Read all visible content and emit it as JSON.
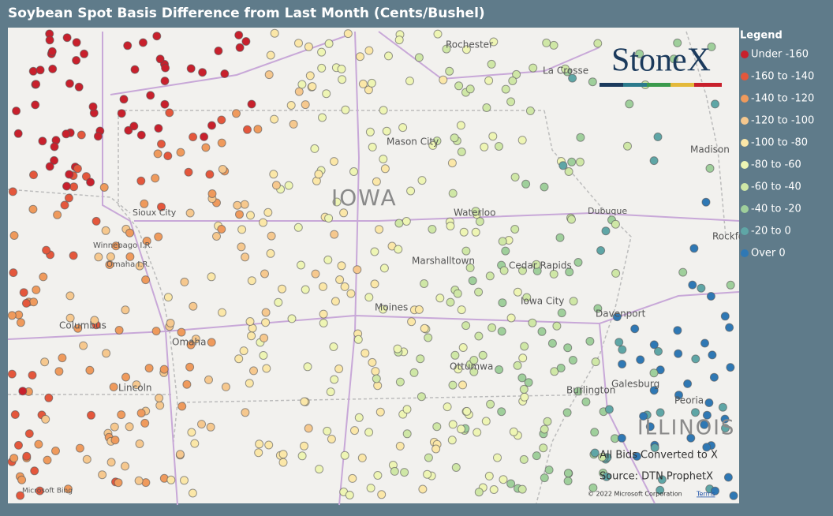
{
  "header": {
    "title": "Soybean Spot Basis Difference from Last Month (Cents/Bushel)"
  },
  "legend": {
    "title": "Legend",
    "items": [
      {
        "label": "Under -160",
        "color": "#c8202c"
      },
      {
        "label": "-160 to -140",
        "color": "#e4573c"
      },
      {
        "label": "-140 to -120",
        "color": "#ef9a5c"
      },
      {
        "label": "-120 to -100",
        "color": "#f6c88e"
      },
      {
        "label": "-100 to -80",
        "color": "#fbe7a8"
      },
      {
        "label": "-80 to -60",
        "color": "#eef5b4"
      },
      {
        "label": "-60 to -40",
        "color": "#cfe7a6"
      },
      {
        "label": "-40 to -20",
        "color": "#9fcf9b"
      },
      {
        "label": "-20 to 0",
        "color": "#5fa6a6"
      },
      {
        "label": "Over 0",
        "color": "#2f78b4"
      }
    ]
  },
  "logo": "StoneX",
  "map_labels": [
    "Rochester",
    "La Crosse",
    "Mason City",
    "Madison",
    "IOWA",
    "Sioux City",
    "Waterloo",
    "Dubuque",
    "Rockford",
    "Winnebago I.R.",
    "Omaha I.R.",
    "Marshalltown",
    "Cedar Rapids",
    "Iowa City",
    "Moines",
    "Davenport",
    "Columbus",
    "Omaha",
    "Ottumwa",
    "Galesburg",
    "Peoria",
    "ILLINOIS",
    "Lincoln",
    "Burlington"
  ],
  "notes": [
    "All Bids Converted to X",
    "Source: DTN ProphetX"
  ],
  "attribution": {
    "bing": "Microsoft Bing",
    "copyright": "© 2022 Microsoft Corporation",
    "terms": "Terms"
  }
}
